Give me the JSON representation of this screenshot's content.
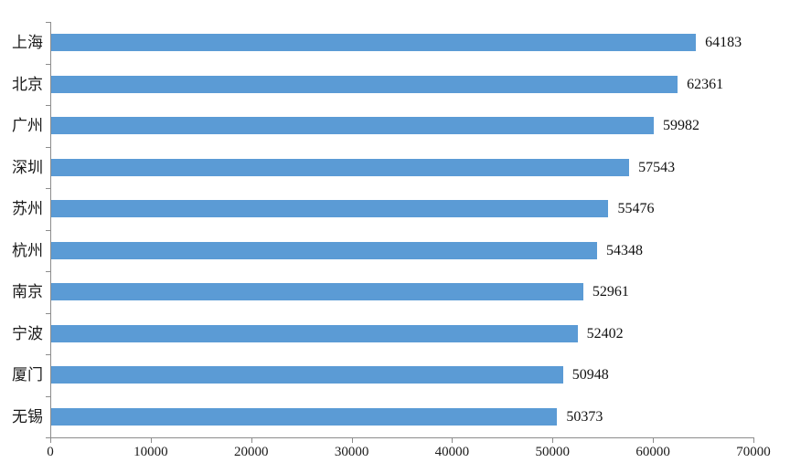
{
  "chart_data": {
    "type": "bar",
    "orientation": "horizontal",
    "title": "",
    "xlabel": "",
    "ylabel": "",
    "categories": [
      "上海",
      "北京",
      "广州",
      "深圳",
      "苏州",
      "杭州",
      "南京",
      "宁波",
      "厦门",
      "无锡"
    ],
    "values": [
      64183,
      62361,
      59982,
      57543,
      55476,
      54348,
      52961,
      52402,
      50948,
      50373
    ],
    "data_labels": [
      "64183",
      "62361",
      "59982",
      "57543",
      "55476",
      "54348",
      "52961",
      "52402",
      "50948",
      "50373"
    ],
    "xlim": [
      0,
      70000
    ],
    "x_tick_labels": [
      "0",
      "10000",
      "20000",
      "30000",
      "40000",
      "50000",
      "60000",
      "70000"
    ],
    "x_tick_values": [
      0,
      10000,
      20000,
      30000,
      40000,
      50000,
      60000,
      70000
    ],
    "grid": false,
    "legend": "none",
    "colors": {
      "bar": "#5B9BD5",
      "axis": "#8c8c8c",
      "text": "#1a1a1a"
    }
  }
}
